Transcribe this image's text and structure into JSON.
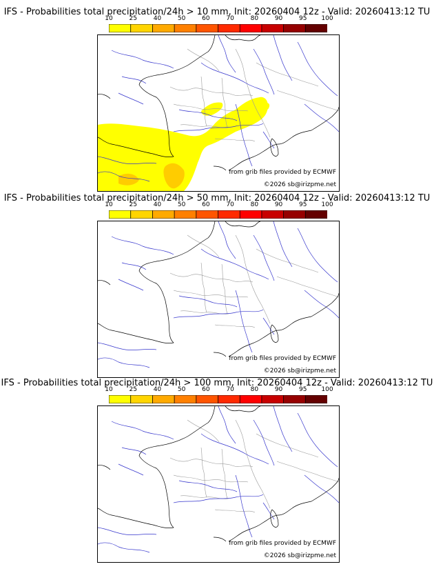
{
  "colorbar": {
    "ticks": [
      "10",
      "25",
      "40",
      "50",
      "60",
      "70",
      "80",
      "90",
      "95",
      "100"
    ],
    "colors": [
      "#ffff00",
      "#ffd500",
      "#ffaa00",
      "#ff8000",
      "#ff5500",
      "#ff2a00",
      "#ff0000",
      "#c80000",
      "#960000",
      "#640000"
    ]
  },
  "panels": [
    {
      "title": "IFS - Probabilities total precipitation/24h > 10 mm, Init: 20260404 12z - Valid: 20260413:12 TU",
      "credit_source": "from grib files provided by ECMWF",
      "credit_copyright": "©2026 sb@irizpme.net",
      "precip_shown": true
    },
    {
      "title": "IFS - Probabilities total precipitation/24h > 50 mm, Init: 20260404 12z - Valid: 20260413:12 TU",
      "credit_source": "from grib files provided by ECMWF",
      "credit_copyright": "©2026 sb@irizpme.net",
      "precip_shown": false
    },
    {
      "title": "IFS - Probabilities total precipitation/24h > 100 mm, Init: 20260404 12z - Valid: 20260413:12 TU",
      "credit_source": "from grib files provided by ECMWF",
      "credit_copyright": "©2026 sb@irizpme.net",
      "precip_shown": false
    }
  ],
  "map_colors": {
    "coast": "#000000",
    "rivers": "#3333cc",
    "borders": "#999999",
    "precip_light": "#ffff00",
    "precip_mid": "#ffcc00",
    "precip_high": "#ffaa00"
  }
}
